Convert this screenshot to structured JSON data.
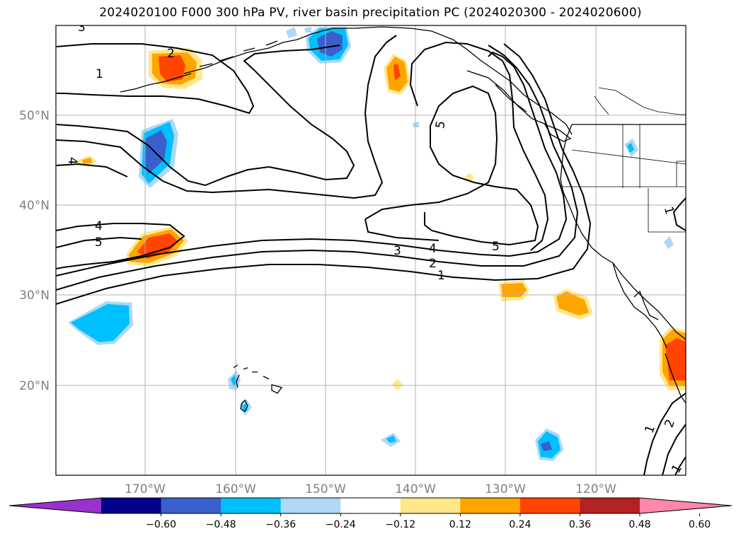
{
  "title": "2024020100 F000 300 hPa PV, river basin precipitation PC (2024020300 - 2024020600)",
  "map": {
    "lon_range": [
      -180,
      -110
    ],
    "lat_range": [
      10,
      60
    ],
    "grid": true,
    "lat_ticks": [
      {
        "value": 20,
        "label": "20°N"
      },
      {
        "value": 30,
        "label": "30°N"
      },
      {
        "value": 40,
        "label": "40°N"
      },
      {
        "value": 50,
        "label": "50°N"
      }
    ],
    "lon_ticks": [
      {
        "value": -170,
        "label": "170°W"
      },
      {
        "value": -160,
        "label": "160°W"
      },
      {
        "value": -150,
        "label": "150°W"
      },
      {
        "value": -140,
        "label": "140°W"
      },
      {
        "value": -130,
        "label": "130°W"
      },
      {
        "value": -120,
        "label": "120°W"
      }
    ],
    "pv_contour_labels": [
      "1",
      "2",
      "3",
      "4",
      "5"
    ]
  },
  "colorbar": {
    "ticks": [
      "−0.60",
      "−0.48",
      "−0.36",
      "−0.24",
      "−0.12",
      "0.12",
      "0.24",
      "0.36",
      "0.48",
      "0.60"
    ],
    "colors": [
      "#9932cc",
      "#00008b",
      "#3a5fcd",
      "#00bfff",
      "#add8f6",
      "#ffffff",
      "#ffe88c",
      "#ffa500",
      "#ff4500",
      "#b22222",
      "#ff88aa"
    ]
  }
}
